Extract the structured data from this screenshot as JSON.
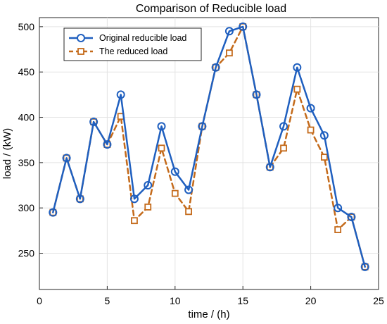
{
  "chart_data": {
    "type": "line",
    "title": "Comparison of Reducible load",
    "xlabel": "time / (h)",
    "ylabel": "load / (kW)",
    "xlim": [
      0,
      25
    ],
    "ylim": [
      210,
      510
    ],
    "xticks": [
      0,
      5,
      10,
      15,
      20,
      25
    ],
    "yticks": [
      250,
      300,
      350,
      400,
      450,
      500
    ],
    "grid": true,
    "legend_position": "top-left",
    "x": [
      1,
      2,
      3,
      4,
      5,
      6,
      7,
      8,
      9,
      10,
      11,
      12,
      13,
      14,
      15,
      16,
      17,
      18,
      19,
      20,
      21,
      22,
      23,
      24
    ],
    "series": [
      {
        "name": "Original reducible load",
        "color": "#1f5fbf",
        "marker": "circle",
        "line_style": "solid",
        "values": [
          295,
          355,
          310,
          395,
          370,
          425,
          310,
          325,
          390,
          340,
          320,
          390,
          455,
          495,
          500,
          425,
          345,
          390,
          455,
          410,
          380,
          300,
          290,
          235
        ]
      },
      {
        "name": "The reduced load",
        "color": "#c46a1a",
        "marker": "square",
        "line_style": "dashed",
        "values": [
          295,
          355,
          310,
          395,
          370,
          401,
          286,
          301,
          366,
          316,
          296,
          390,
          455,
          471,
          500,
          425,
          345,
          366,
          431,
          386,
          356,
          276,
          290,
          235
        ]
      }
    ]
  }
}
